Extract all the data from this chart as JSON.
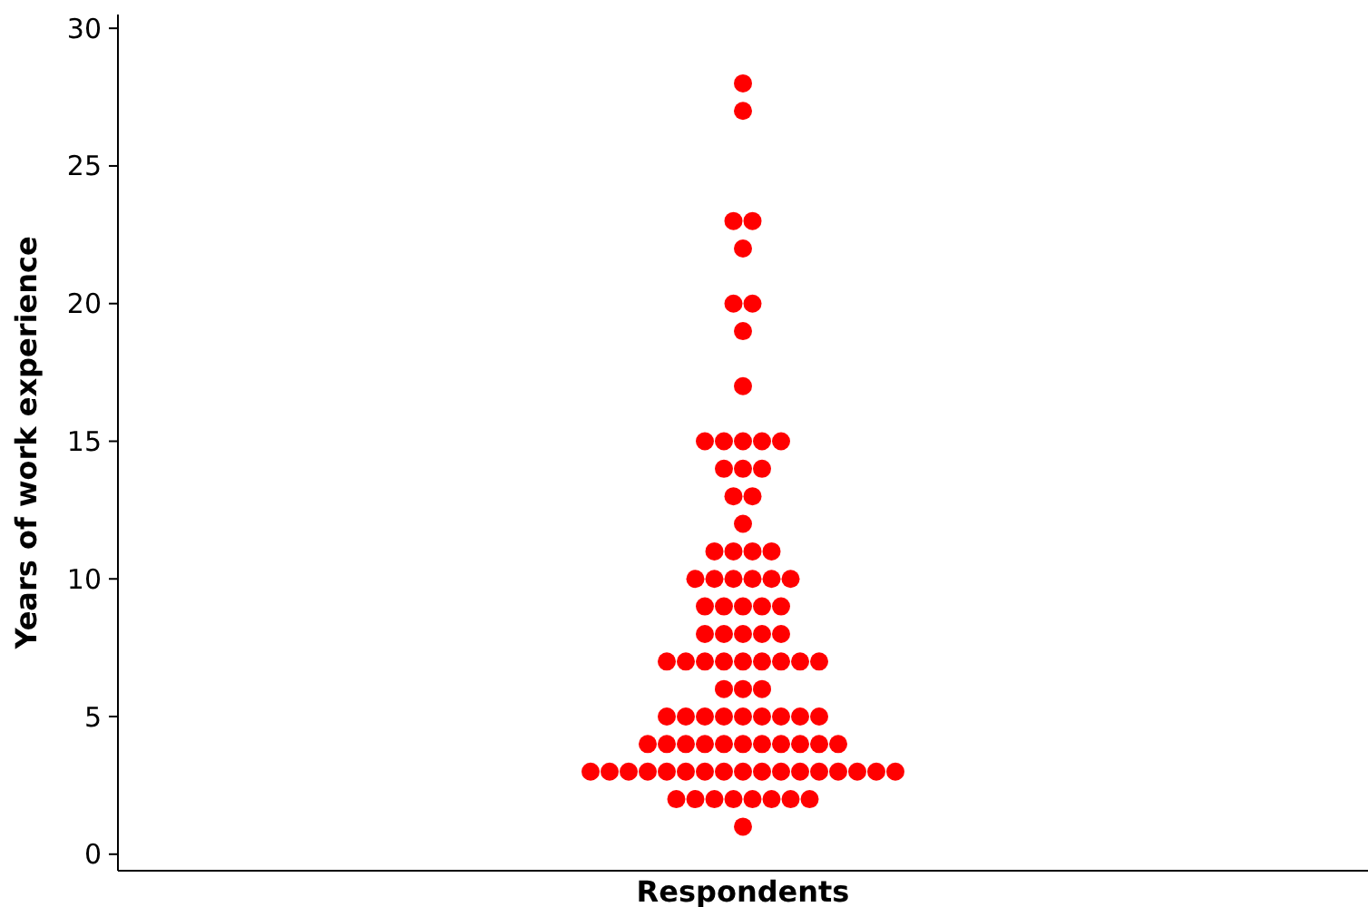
{
  "chart_data": {
    "type": "scatter",
    "xlabel": "Respondents",
    "ylabel": "Years of work experience",
    "categories": [
      null
    ],
    "series": [
      {
        "color": "#ff0000",
        "x": [
          null,
          null,
          null,
          null,
          null,
          null,
          null,
          null,
          null,
          null,
          null,
          null,
          null,
          null,
          null,
          null,
          null,
          null,
          null,
          null,
          null,
          null,
          null,
          null,
          null,
          null,
          null,
          null,
          null,
          null,
          null,
          null,
          null,
          null,
          null,
          null,
          null,
          null,
          null,
          null,
          null,
          null,
          null,
          null,
          null,
          null,
          null,
          null,
          null,
          null,
          null,
          null,
          null,
          null,
          null,
          null,
          null,
          null,
          null,
          null,
          null,
          null,
          null,
          null,
          null,
          null,
          null,
          null,
          null,
          null,
          null,
          null,
          null,
          null,
          null,
          null,
          null,
          null,
          null,
          null,
          null,
          null,
          null,
          null,
          null,
          null,
          null,
          null,
          null,
          null,
          null,
          null,
          null,
          null,
          null,
          null,
          null,
          null
        ],
        "values": [
          28,
          27,
          23,
          23,
          22,
          20,
          20,
          19,
          17,
          15,
          15,
          15,
          15,
          15,
          14,
          14,
          14,
          13,
          13,
          12,
          11,
          11,
          11,
          11,
          10,
          10,
          10,
          10,
          10,
          10,
          9,
          9,
          9,
          9,
          9,
          8,
          8,
          8,
          8,
          8,
          7,
          7,
          7,
          7,
          7,
          7,
          7,
          7,
          7,
          6,
          6,
          6,
          5,
          5,
          5,
          5,
          5,
          5,
          5,
          5,
          5,
          4,
          4,
          4,
          4,
          4,
          4,
          4,
          4,
          4,
          4,
          4,
          3,
          3,
          3,
          3,
          3,
          3,
          3,
          3,
          3,
          3,
          3,
          3,
          3,
          3,
          3,
          3,
          3,
          2,
          2,
          2,
          2,
          2,
          2,
          2,
          2,
          1
        ]
      }
    ],
    "ylim": [
      -0.6,
      30.5
    ],
    "yticks": [
      0,
      5,
      10,
      15,
      20,
      25,
      30
    ],
    "marker": "circle",
    "grid": false,
    "tick_labels": "y"
  }
}
